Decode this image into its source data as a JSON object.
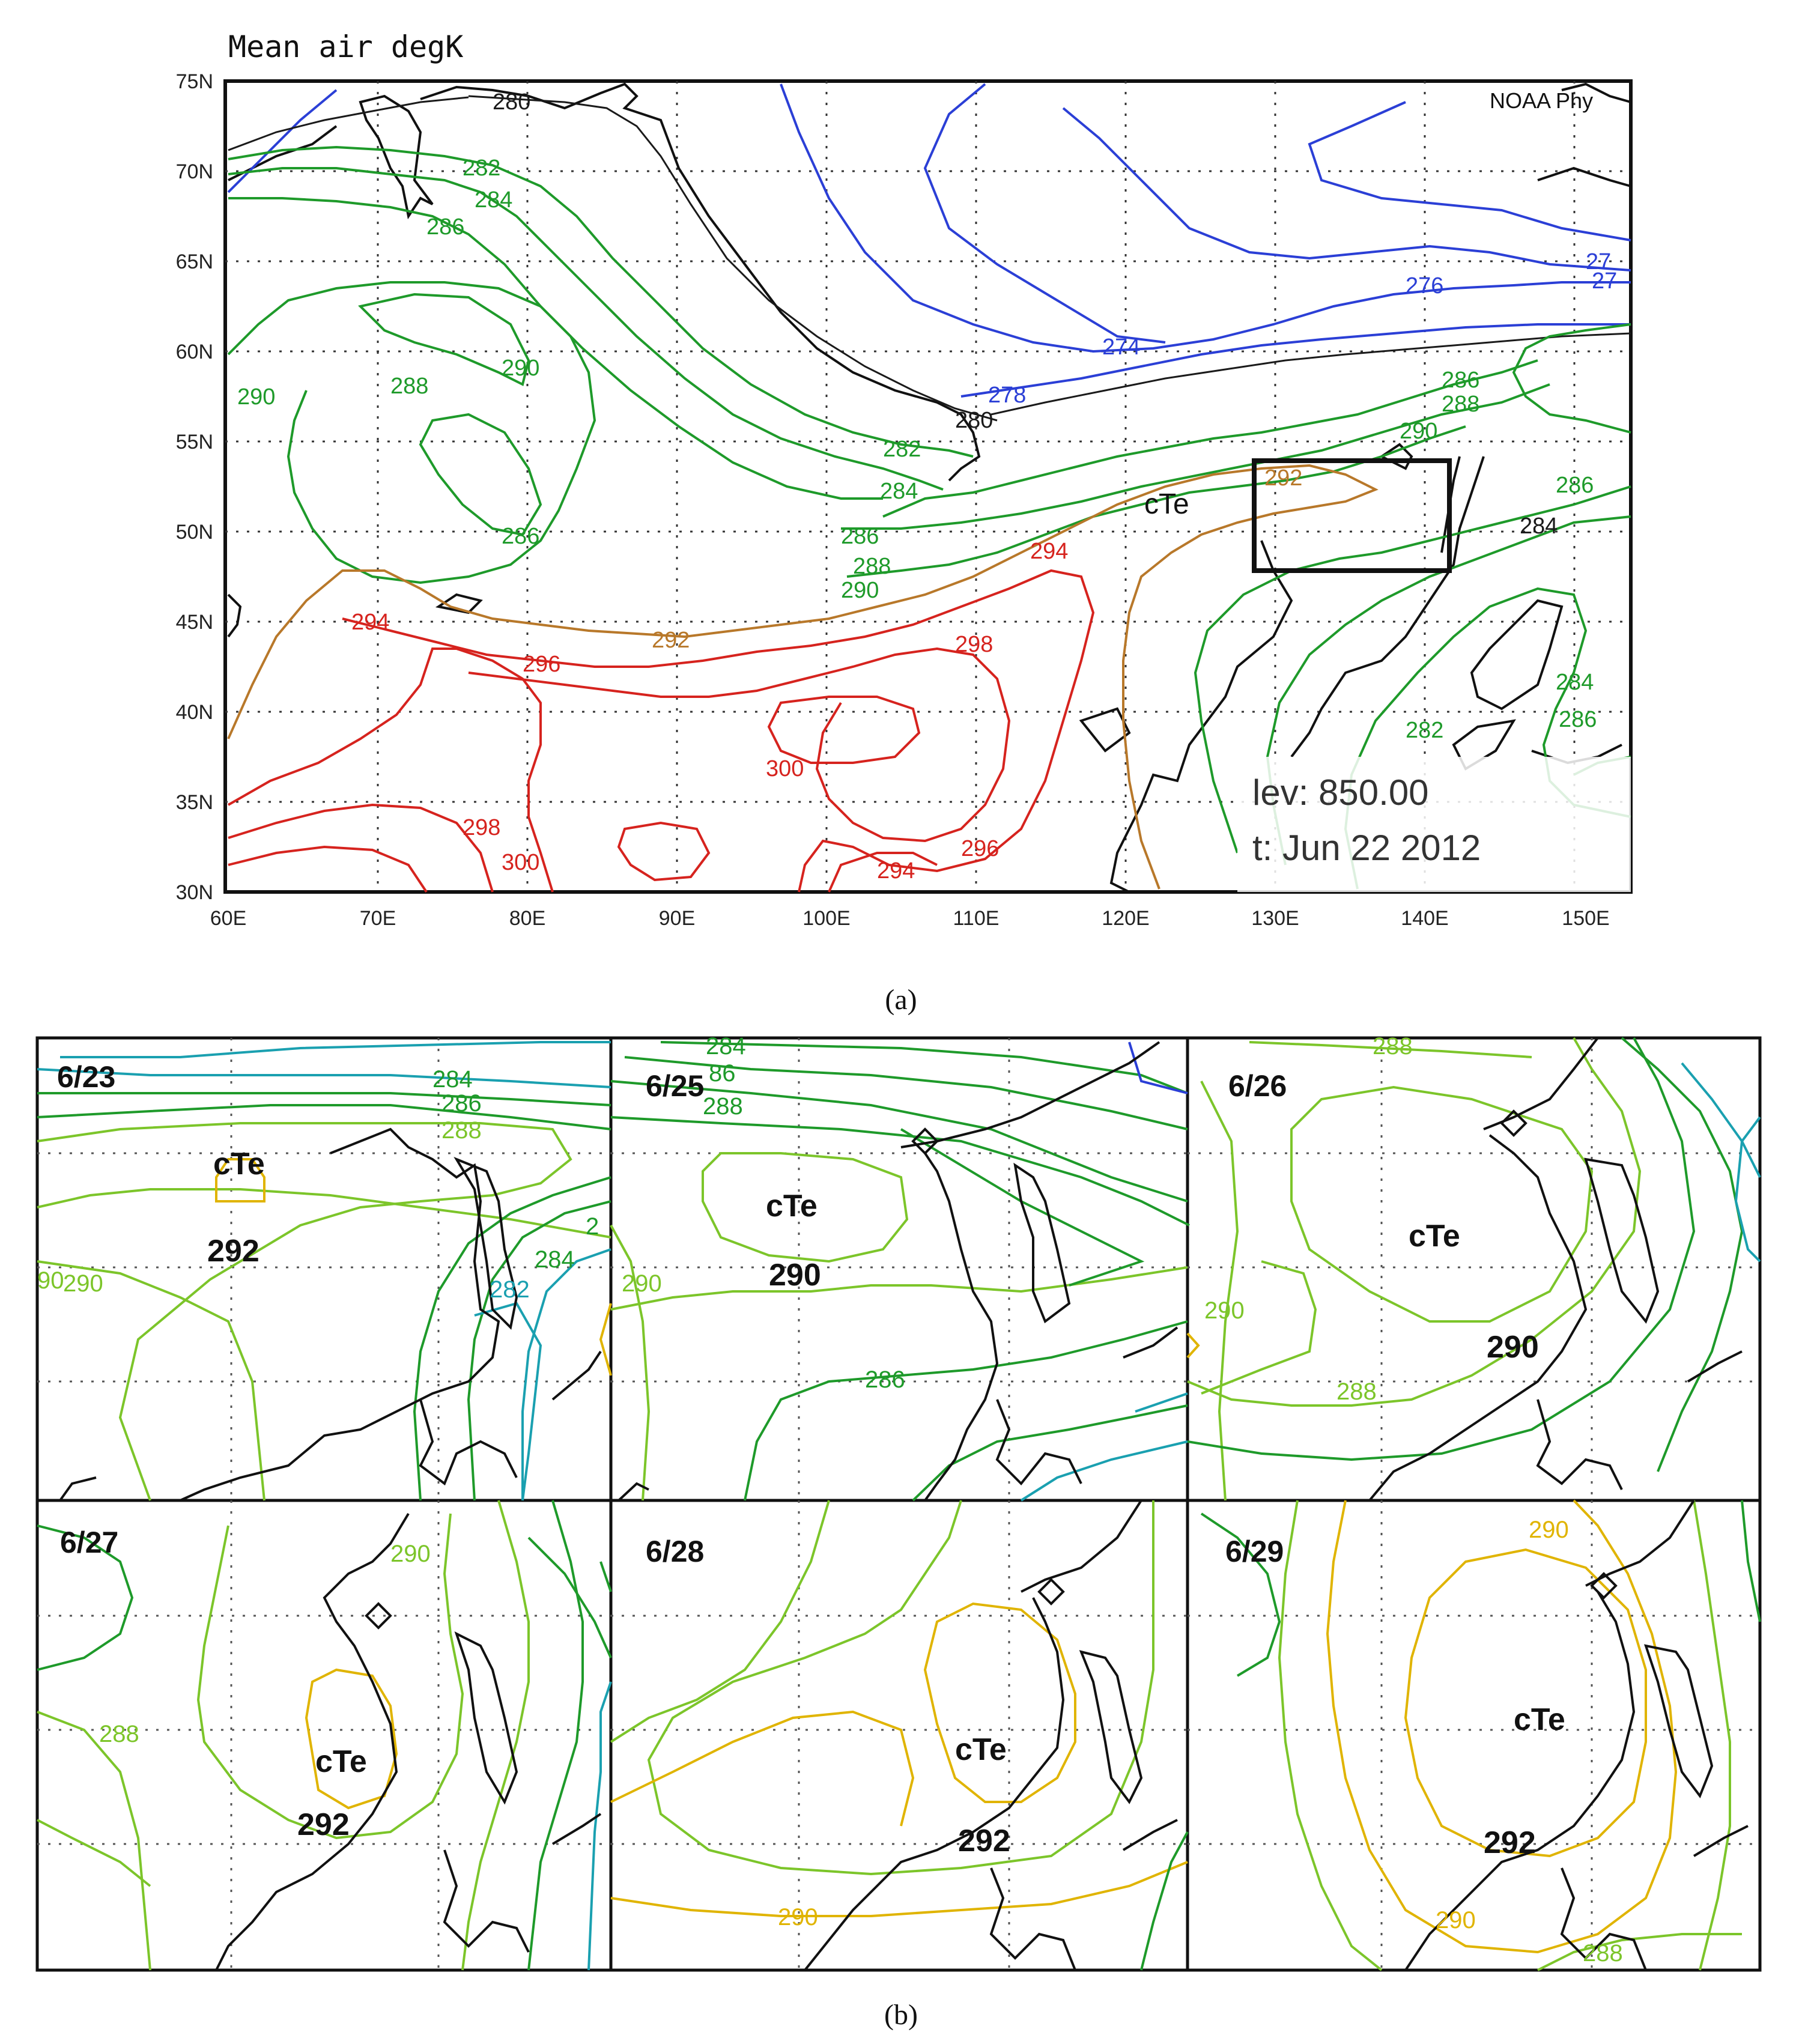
{
  "panel_a": {
    "title": "Mean air degK",
    "source_label": "NOAA Phy",
    "level_label": "lev: 850.00",
    "time_label": "t: Jun 22 2012",
    "air_mass_label": "cTe",
    "caption": "(a)",
    "x_ticks": [
      "60E",
      "70E",
      "80E",
      "90E",
      "100E",
      "110E",
      "120E",
      "130E",
      "140E",
      "150E"
    ],
    "y_ticks": [
      "75N",
      "70N",
      "65N",
      "60N",
      "55N",
      "50N",
      "45N",
      "40N",
      "35N",
      "30N"
    ],
    "contour_labels": {
      "blue": [
        "276",
        "274",
        "278",
        "27",
        "27"
      ],
      "dark": [
        "280",
        "280"
      ],
      "green": [
        "282",
        "284",
        "286",
        "290",
        "288",
        "290",
        "286",
        "282",
        "284",
        "286",
        "288",
        "290",
        "286",
        "288",
        "290",
        "286",
        "284",
        "284",
        "286",
        "282"
      ],
      "orange": [
        "292",
        "292"
      ],
      "red": [
        "294",
        "294",
        "296",
        "298",
        "298",
        "300",
        "300",
        "296",
        "294"
      ]
    }
  },
  "panel_b": {
    "caption": "(b)",
    "subpanels": [
      {
        "date": "6/23",
        "air_mass_label": "cTe",
        "value_label": "292",
        "contours": [
          "284",
          "286",
          "288",
          "290",
          "90",
          "284",
          "282",
          "2"
        ]
      },
      {
        "date": "6/25",
        "air_mass_label": "cTe",
        "value_label": "290",
        "contours": [
          "284",
          "86",
          "288",
          "290",
          "286"
        ]
      },
      {
        "date": "6/26",
        "air_mass_label": "cTe",
        "value_label": "290",
        "contours": [
          "288",
          "290",
          "288"
        ]
      },
      {
        "date": "6/27",
        "air_mass_label": "cTe",
        "value_label": "292",
        "contours": [
          "290",
          "288"
        ]
      },
      {
        "date": "6/28",
        "air_mass_label": "cTe",
        "value_label": "292",
        "contours": [
          "290"
        ]
      },
      {
        "date": "6/29",
        "air_mass_label": "cTe",
        "value_label": "292",
        "contours": [
          "290",
          "290",
          "288"
        ]
      }
    ]
  },
  "colors": {
    "blue": "#2b3fd6",
    "dark": "#1a1a1a",
    "green": "#1e9a2a",
    "lightgreen": "#7cc52a",
    "teal": "#1aa0b0",
    "orange": "#b8782a",
    "yellow": "#e0b400",
    "red": "#d6231e"
  }
}
